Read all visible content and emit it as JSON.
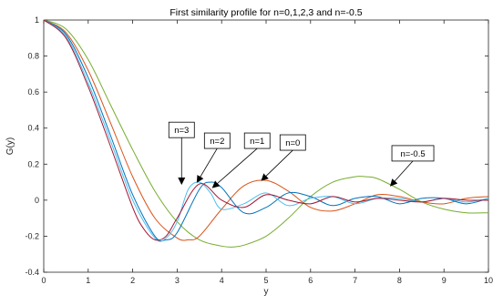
{
  "chart_data": {
    "type": "line",
    "title": "First similarity profile for n=0,1,2,3 and n=-0.5",
    "xlabel": "y",
    "ylabel": "G(y)",
    "xlim": [
      0,
      10
    ],
    "ylim": [
      -0.4,
      1
    ],
    "xticks": [
      "0",
      "1",
      "2",
      "3",
      "4",
      "5",
      "6",
      "7",
      "8",
      "9",
      "10"
    ],
    "yticks": [
      "-0.4",
      "-0.2",
      "0",
      "0.2",
      "0.4",
      "0.6",
      "0.8",
      "1"
    ],
    "grid": false,
    "legend": "none",
    "series": [
      {
        "color": "#77ac30",
        "x": [
          0,
          0.5,
          1,
          1.5,
          2,
          2.5,
          3,
          3.5,
          4,
          4.25,
          4.5,
          5,
          5.5,
          6,
          6.5,
          7,
          7.25,
          7.5,
          8,
          8.5,
          9,
          9.5,
          10
        ],
        "y": [
          1,
          0.95,
          0.78,
          0.53,
          0.28,
          0.05,
          -0.12,
          -0.22,
          -0.255,
          -0.26,
          -0.25,
          -0.2,
          -0.1,
          0.02,
          0.1,
          0.13,
          0.13,
          0.12,
          0.06,
          -0.01,
          -0.05,
          -0.07,
          -0.07
        ]
      },
      {
        "color": "#d95319",
        "x": [
          0,
          0.5,
          1,
          1.5,
          2,
          2.5,
          3,
          3.25,
          3.5,
          4,
          4.5,
          5,
          5.5,
          6,
          6.5,
          7,
          7.5,
          8,
          8.5,
          9,
          9.5,
          10
        ],
        "y": [
          1,
          0.93,
          0.72,
          0.43,
          0.13,
          -0.1,
          -0.21,
          -0.22,
          -0.2,
          -0.05,
          0.08,
          0.11,
          0.05,
          -0.04,
          -0.06,
          -0.02,
          0.03,
          0.02,
          -0.01,
          -0.02,
          0.01,
          0.02
        ]
      },
      {
        "color": "#0072bd",
        "x": [
          0,
          0.5,
          1,
          1.5,
          2,
          2.5,
          2.75,
          3,
          3.5,
          3.75,
          4,
          4.5,
          5,
          5.5,
          6,
          6.5,
          7,
          7.5,
          8,
          8.5,
          9,
          9.5,
          10
        ],
        "y": [
          1,
          0.92,
          0.68,
          0.36,
          0.03,
          -0.2,
          -0.22,
          -0.18,
          0.06,
          0.1,
          0.07,
          -0.07,
          -0.04,
          0.04,
          0.02,
          -0.03,
          0.01,
          0.02,
          -0.02,
          0.01,
          0.01,
          -0.02,
          0.01
        ]
      },
      {
        "color": "#4dbeee",
        "x": [
          0,
          0.5,
          1,
          1.5,
          2,
          2.5,
          2.75,
          3,
          3.25,
          3.5,
          3.75,
          4,
          4.5,
          5,
          5.5,
          6,
          6.5,
          7,
          7.5,
          8,
          8.5,
          9,
          9.5,
          10
        ],
        "y": [
          1,
          0.91,
          0.65,
          0.33,
          0.0,
          -0.21,
          -0.21,
          -0.12,
          0.06,
          0.1,
          0.04,
          -0.05,
          -0.02,
          0.04,
          -0.03,
          0.01,
          0.02,
          -0.02,
          0.01,
          0.01,
          -0.01,
          0.01,
          -0.01,
          0.01
        ]
      },
      {
        "color": "#a2142f",
        "x": [
          0,
          0.5,
          1,
          1.5,
          2,
          2.25,
          2.5,
          2.75,
          3,
          3.5,
          4,
          4.5,
          5,
          5.5,
          6,
          6.5,
          7,
          7.5,
          8,
          8.5,
          9,
          9.5,
          10
        ],
        "y": [
          1,
          0.9,
          0.63,
          0.3,
          -0.04,
          -0.16,
          -0.22,
          -0.2,
          -0.1,
          0.09,
          0.0,
          -0.04,
          0.03,
          0.0,
          -0.02,
          0.02,
          -0.01,
          0.01,
          0.0,
          -0.01,
          0.01,
          0.0,
          0.0
        ]
      }
    ],
    "annotations": [
      {
        "text": "n=3",
        "box_at": [
          3.1,
          0.39
        ],
        "arrow_to": [
          3.1,
          0.09
        ]
      },
      {
        "text": "n=2",
        "box_at": [
          3.9,
          0.33
        ],
        "arrow_to": [
          3.45,
          0.1
        ]
      },
      {
        "text": "n=1",
        "box_at": [
          4.8,
          0.33
        ],
        "arrow_to": [
          3.8,
          0.07
        ]
      },
      {
        "text": "n=0",
        "box_at": [
          5.6,
          0.32
        ],
        "arrow_to": [
          4.9,
          0.11
        ]
      },
      {
        "text": "n=-0.5",
        "box_at": [
          8.3,
          0.26
        ],
        "arrow_to": [
          7.8,
          0.08
        ]
      }
    ]
  }
}
